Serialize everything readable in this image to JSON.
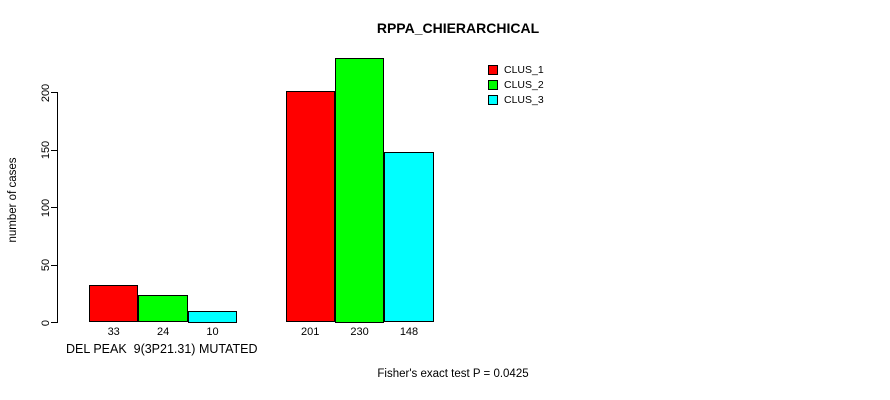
{
  "chart_data": {
    "type": "bar",
    "title": "RPPA_CHIERARCHICAL",
    "ylabel": "number of cases",
    "xlabel": "DEL PEAK  9(3P21.31) MUTATED",
    "footnote": "Fisher's exact test P = 0.0425",
    "yticks": [
      0,
      50,
      100,
      150,
      200
    ],
    "ylim": [
      0,
      235
    ],
    "grid": false,
    "legend_position": "top-right",
    "bar_value_labels": true,
    "bar_border_color": "#000000",
    "text_color": "#000000",
    "background_color": "#ffffff",
    "series": [
      {
        "name": "CLUS_1",
        "color": "#ff0000",
        "values": [
          33,
          201
        ]
      },
      {
        "name": "CLUS_2",
        "color": "#00ff00",
        "values": [
          24,
          230
        ]
      },
      {
        "name": "CLUS_3",
        "color": "#00ffff",
        "values": [
          10,
          148
        ]
      }
    ]
  }
}
